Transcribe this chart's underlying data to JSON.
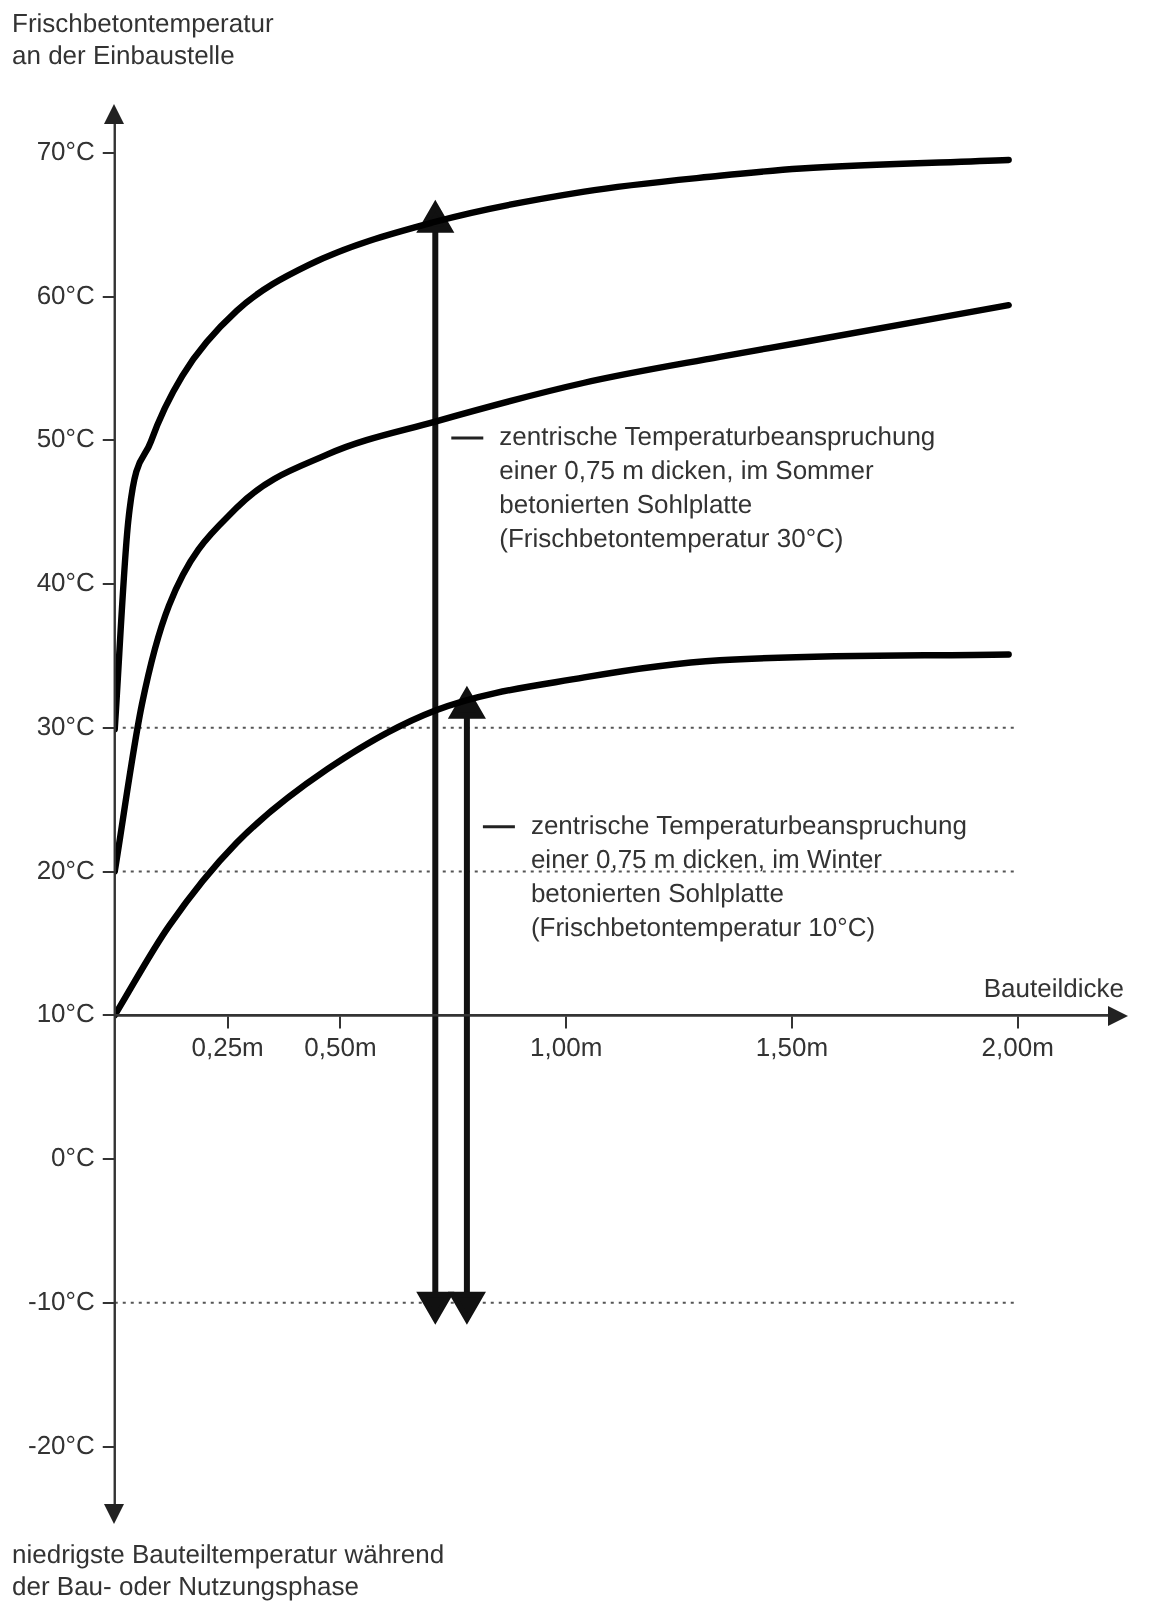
{
  "chart_data": {
    "type": "line",
    "ylabel": "Frischbetontemperatur\nan der Einbaustelle",
    "xlabel": "Bauteildicke",
    "xlim": [
      0,
      2.2
    ],
    "ylim": [
      -24,
      72
    ],
    "xticks": [
      {
        "value": 0.25,
        "label": "0,25m"
      },
      {
        "value": 0.5,
        "label": "0,50m"
      },
      {
        "value": 1,
        "label": "1,00m"
      },
      {
        "value": 1.5,
        "label": "1,50m"
      },
      {
        "value": 2,
        "label": "2,00m"
      }
    ],
    "yticks": [
      {
        "value": -20,
        "label": "-20°C"
      },
      {
        "value": -10,
        "label": "-10°C"
      },
      {
        "value": 0,
        "label": "0°C"
      },
      {
        "value": 10,
        "label": "10°C"
      },
      {
        "value": 20,
        "label": "20°C"
      },
      {
        "value": 30,
        "label": "30°C"
      },
      {
        "value": 40,
        "label": "40°C"
      },
      {
        "value": 50,
        "label": "50°C"
      },
      {
        "value": 60,
        "label": "60°C"
      },
      {
        "value": 70,
        "label": "70°C"
      }
    ],
    "series": [
      {
        "color": "#000000",
        "x": [
          0,
          0.03,
          0.08,
          0.15,
          0.27,
          0.43,
          0.71,
          1.04,
          1.34,
          1.52,
          1.98
        ],
        "values": [
          29.9,
          44.4,
          49.9,
          54.5,
          59,
          62.2,
          65.2,
          67.3,
          68.4,
          68.9,
          69.5
        ]
      },
      {
        "color": "#000000",
        "x": [
          0,
          0.06,
          0.12,
          0.27,
          0.47,
          0.71,
          1.04,
          1.34,
          1.52,
          1.98
        ],
        "values": [
          20,
          31.6,
          38.5,
          45.3,
          49,
          51.3,
          54,
          55.8,
          56.8,
          59.4
        ]
      },
      {
        "color": "#000000",
        "x": [
          0,
          0.12,
          0.27,
          0.47,
          0.71,
          1.04,
          1.34,
          1.98
        ],
        "values": [
          10,
          16.2,
          22,
          27.1,
          31.2,
          33.5,
          34.7,
          35.1
        ]
      },
      {
        "color": "#111111",
        "marker": "triangle",
        "x": [
          0.71,
          0.71
        ],
        "values": [
          65.2,
          -10
        ]
      },
      {
        "color": "#111111",
        "marker": "triangle",
        "x": [
          0.78,
          0.78
        ],
        "values": [
          31.4,
          -10
        ]
      }
    ],
    "ref_lines": [
      {
        "axis": "y",
        "value": 30,
        "color": "#555555",
        "line_style": "dotted"
      },
      {
        "axis": "y",
        "value": 20,
        "color": "#555555",
        "line_style": "dotted"
      },
      {
        "axis": "y",
        "value": -10,
        "color": "#555555",
        "line_style": "dotted"
      }
    ],
    "annotations": [
      "zentrische Temperaturbeanspruchung\neiner 0,75 m dicken, im Sommer\nbetonierten Sohlplatte\n(Frischbetontemperatur 30°C)",
      "zentrische Temperaturbeanspruchung\neiner 0,75 m dicken, im Winter\nbetonierten Sohlplatte\n(Frischbetontemperatur 10°C)",
      "niedrigste Bauteiltemperatur während\nder Bau- oder Nutzungsphase"
    ],
    "legend": false,
    "grid": false,
    "marker": "none",
    "line_style": "solid"
  }
}
